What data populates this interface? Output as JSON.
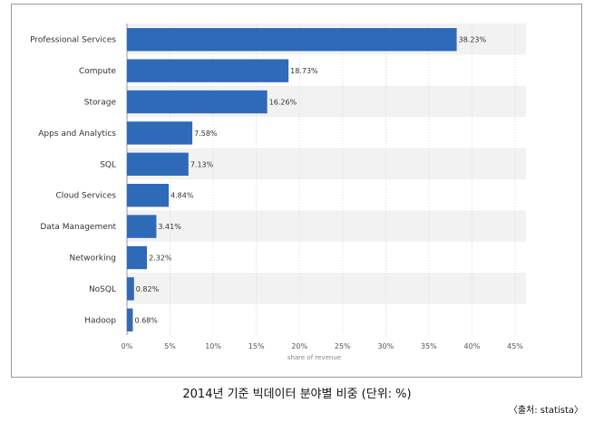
{
  "chart_data": {
    "type": "bar",
    "orientation": "horizontal",
    "categories": [
      "Professional Services",
      "Compute",
      "Storage",
      "Apps and Analytics",
      "SQL",
      "Cloud Services",
      "Data Management",
      "Networking",
      "NoSQL",
      "Hadoop"
    ],
    "values": [
      38.23,
      18.73,
      16.26,
      7.58,
      7.13,
      4.84,
      3.41,
      2.32,
      0.82,
      0.68
    ],
    "value_labels": [
      "38.23%",
      "18.73%",
      "16.26%",
      "7.58%",
      "7.13%",
      "4.84%",
      "3.41%",
      "2.32%",
      "0.82%",
      "0.68%"
    ],
    "xlabel": "share of revenue",
    "xlim": [
      0,
      45
    ],
    "x_ticks": [
      0,
      5,
      10,
      15,
      20,
      25,
      30,
      35,
      40,
      45
    ],
    "x_tick_labels": [
      "0%",
      "5%",
      "10%",
      "15%",
      "20%",
      "25%",
      "30%",
      "35%",
      "40%",
      "45%"
    ],
    "grid": "vertical",
    "bar_color": "#2f6ab8",
    "band_color": "#f2f2f2"
  },
  "caption": "2014년 기준 빅데이터 분야별 비중 (단위: %)",
  "source": "〈출처: statista〉"
}
